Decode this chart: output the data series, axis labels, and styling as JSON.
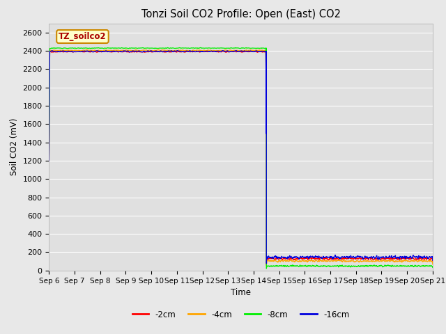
{
  "title": "Tonzi Soil CO2 Profile: Open (East) CO2",
  "ylabel": "Soil CO2 (mV)",
  "xlabel": "Time",
  "watermark": "TZ_soilco2",
  "ylim": [
    0,
    2700
  ],
  "yticks": [
    0,
    200,
    400,
    600,
    800,
    1000,
    1200,
    1400,
    1600,
    1800,
    2000,
    2200,
    2400,
    2600
  ],
  "x_start_day": 6,
  "x_end_day": 21,
  "drop_day": 14.5,
  "series": {
    "-2cm": {
      "color": "#ff0000",
      "pre_val": 2390,
      "post_val": 130,
      "noise": 12,
      "drop_noise": 8
    },
    "-4cm": {
      "color": "#ffa500",
      "pre_val": 2405,
      "post_val": 105,
      "noise": 10,
      "drop_noise": 6
    },
    "-8cm": {
      "color": "#00ee00",
      "pre_val": 2430,
      "post_val": 50,
      "noise": 8,
      "drop_noise": 5
    },
    "-16cm": {
      "color": "#0000dd",
      "pre_val": 2395,
      "post_val": 145,
      "noise": 14,
      "drop_noise": 10
    }
  },
  "bg_color": "#e8e8e8",
  "plot_bg_color": "#e0e0e0",
  "x_tick_labels": [
    "Sep 6",
    "Sep 7",
    "Sep 8",
    "Sep 9",
    "Sep 10",
    "Sep 11",
    "Sep 12",
    "Sep 13",
    "Sep 14",
    "Sep 15",
    "Sep 16",
    "Sep 17",
    "Sep 18",
    "Sep 19",
    "Sep 20",
    "Sep 21"
  ],
  "x_tick_positions": [
    6,
    7,
    8,
    9,
    10,
    11,
    12,
    13,
    14,
    15,
    16,
    17,
    18,
    19,
    20,
    21
  ],
  "legend_order": [
    "-2cm",
    "-4cm",
    "-8cm",
    "-16cm"
  ]
}
